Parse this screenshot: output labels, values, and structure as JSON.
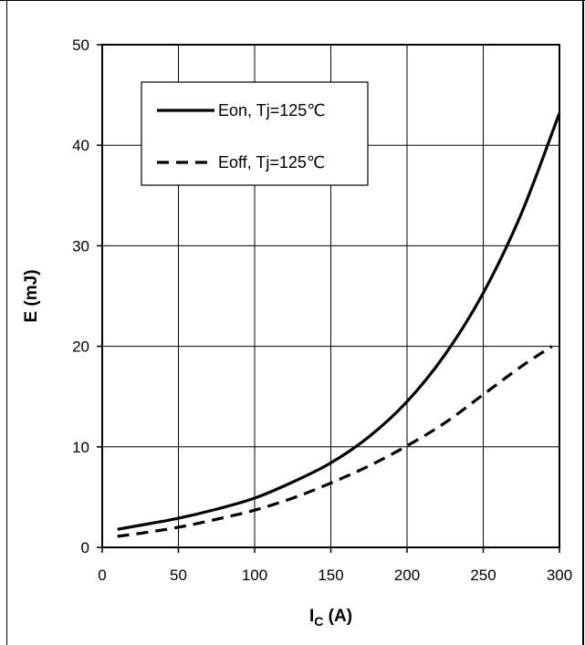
{
  "chart_data": {
    "type": "line",
    "xlabel": "I",
    "xlabel_sub": "C",
    "xlabel_unit": " (A)",
    "ylabel": "E (mJ)",
    "xlim": [
      0,
      300
    ],
    "ylim": [
      0,
      50
    ],
    "xticks": [
      0,
      50,
      100,
      150,
      200,
      250,
      300
    ],
    "yticks": [
      0,
      10,
      20,
      30,
      40,
      50
    ],
    "grid": true,
    "legend_position": "top-left",
    "series": [
      {
        "name": "Eon, Tj=125℃",
        "style": "solid",
        "color": "#000000",
        "x": [
          10,
          25,
          50,
          75,
          100,
          125,
          150,
          175,
          200,
          225,
          250,
          275,
          300
        ],
        "y": [
          1.8,
          2.2,
          2.9,
          3.8,
          4.9,
          6.5,
          8.4,
          11.0,
          14.5,
          19.2,
          25.3,
          33.2,
          43.2
        ]
      },
      {
        "name": "Eoff, Tj=125℃",
        "style": "dashed",
        "color": "#000000",
        "x": [
          10,
          25,
          50,
          75,
          100,
          125,
          150,
          175,
          200,
          225,
          250,
          275,
          295
        ],
        "y": [
          1.1,
          1.4,
          2.0,
          2.8,
          3.7,
          4.9,
          6.4,
          8.1,
          10.1,
          12.4,
          15.2,
          18.0,
          20.0
        ]
      }
    ]
  }
}
